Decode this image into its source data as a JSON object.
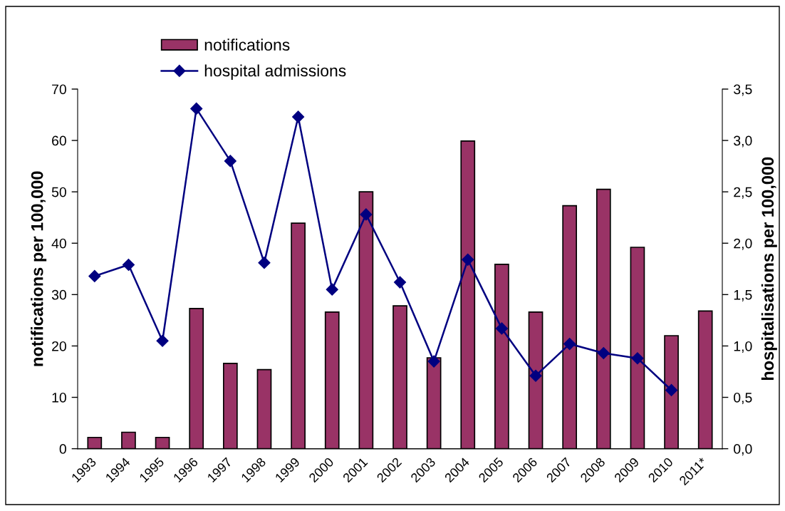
{
  "chart_data": {
    "type": "bar",
    "categories": [
      "1993",
      "1994",
      "1995",
      "1996",
      "1997",
      "1998",
      "1999",
      "2000",
      "2001",
      "2002",
      "2003",
      "2004",
      "2005",
      "2006",
      "2007",
      "2008",
      "2009",
      "2010",
      "2011*"
    ],
    "series": [
      {
        "name": "notifications",
        "color": "#993366",
        "values": [
          2.2,
          3.2,
          2.2,
          27.3,
          16.6,
          15.4,
          43.9,
          26.6,
          50.0,
          27.8,
          17.7,
          59.9,
          35.9,
          26.6,
          47.3,
          50.5,
          39.2,
          22.0,
          26.8
        ]
      },
      {
        "name": "hospital admissions",
        "type": "line",
        "axis": "y2",
        "color": "#000080",
        "marker": "diamond",
        "line_style": "solid",
        "values": [
          1.68,
          1.79,
          1.05,
          3.31,
          2.8,
          1.81,
          3.23,
          1.55,
          2.28,
          1.62,
          0.85,
          1.84,
          1.17,
          0.71,
          1.02,
          0.93,
          0.88,
          0.57,
          null
        ]
      }
    ],
    "ylabel": "notifications per 100,000",
    "y2label": "hospitalisations per 100,000",
    "ylim": [
      0,
      70
    ],
    "yticks": [
      0,
      10,
      20,
      30,
      40,
      50,
      60,
      70
    ],
    "y2lim": [
      0,
      3.5
    ],
    "y2ticks": [
      {
        "value": 0,
        "label": "0,0"
      },
      {
        "value": 0.5,
        "label": "0,5"
      },
      {
        "value": 1.0,
        "label": "1,0"
      },
      {
        "value": 1.5,
        "label": "1,5"
      },
      {
        "value": 2.0,
        "label": "2,0"
      },
      {
        "value": 2.5,
        "label": "2,5"
      },
      {
        "value": 3.0,
        "label": "3,0"
      },
      {
        "value": 3.5,
        "label": "3,5"
      }
    ],
    "legend": "top left",
    "grid": false
  }
}
